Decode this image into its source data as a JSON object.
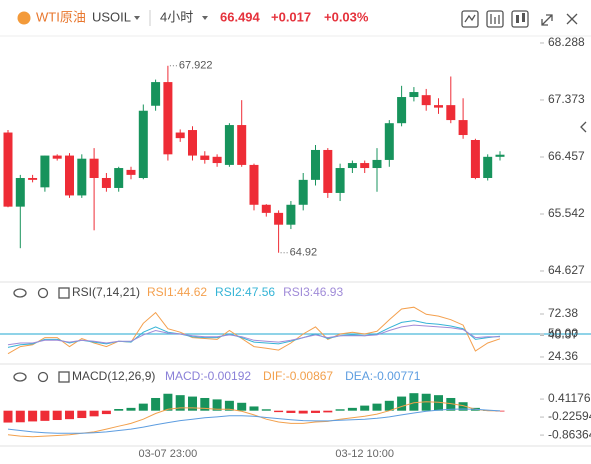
{
  "header": {
    "symbol_name": "WTI原油",
    "symbol": "USOIL",
    "interval": "4小时",
    "price": "66.494",
    "change": "+0.017",
    "change_pct": "+0.03%"
  },
  "chart_data": [
    {
      "type": "candlestick",
      "categories": [
        null,
        null,
        null,
        null,
        null,
        null,
        null,
        null,
        null,
        null,
        null,
        null,
        null,
        "03-07 23:00",
        null,
        null,
        null,
        null,
        null,
        null,
        null,
        null,
        null,
        null,
        null,
        null,
        null,
        null,
        null,
        "03-12 10:00",
        null,
        null,
        null,
        null,
        null,
        null,
        null,
        null,
        null,
        null,
        null
      ],
      "open": [
        66.85,
        65.66,
        66.12,
        65.97,
        66.48,
        66.48,
        65.84,
        66.43,
        66.12,
        65.96,
        66.25,
        66.12,
        67.28,
        67.66,
        66.85,
        66.89,
        66.48,
        66.46,
        66.33,
        66.97,
        66.33,
        65.69,
        65.56,
        65.37,
        65.69,
        66.09,
        66.57,
        65.88,
        66.28,
        66.36,
        66.28,
        66.41,
        67.0,
        67.42,
        67.45,
        67.29,
        67.29,
        67.05,
        66.73,
        66.12,
        66.46
      ],
      "high": [
        66.89,
        66.17,
        66.17,
        66.48,
        66.5,
        66.52,
        66.5,
        66.6,
        66.2,
        66.3,
        66.3,
        67.3,
        67.7,
        67.922,
        66.9,
        66.95,
        66.55,
        66.5,
        67.0,
        67.37,
        66.35,
        65.7,
        65.6,
        65.75,
        66.2,
        66.65,
        66.6,
        66.35,
        66.4,
        66.4,
        66.6,
        67.05,
        67.6,
        67.58,
        67.55,
        67.4,
        67.75,
        67.4,
        66.75,
        66.5,
        66.55
      ],
      "low": [
        65.65,
        64.993,
        66.05,
        65.9,
        66.4,
        65.8,
        65.8,
        65.28,
        65.9,
        65.9,
        66.1,
        66.1,
        67.2,
        66.4,
        66.7,
        66.4,
        66.35,
        66.3,
        66.3,
        66.3,
        65.6,
        65.5,
        64.92,
        65.3,
        65.6,
        66.0,
        65.8,
        65.75,
        66.2,
        66.2,
        65.9,
        66.3,
        66.95,
        67.35,
        67.2,
        67.15,
        67.0,
        66.75,
        66.1,
        66.08,
        66.4
      ],
      "close": [
        65.66,
        66.12,
        66.09,
        66.48,
        66.43,
        65.84,
        66.43,
        66.12,
        65.96,
        66.28,
        66.17,
        67.2,
        67.66,
        66.5,
        66.76,
        66.48,
        66.41,
        66.36,
        66.97,
        66.33,
        65.69,
        65.56,
        65.37,
        65.69,
        66.09,
        66.57,
        65.88,
        66.28,
        66.36,
        66.28,
        66.41,
        67.0,
        67.42,
        67.5,
        67.29,
        67.25,
        67.05,
        66.81,
        66.12,
        66.46,
        66.494
      ],
      "up_color": "#17935c",
      "down_color": "#ee2c36",
      "ylim": [
        64.45,
        68.4
      ],
      "yticks": [
        64.627,
        65.542,
        66.457,
        67.373,
        68.288
      ]
    },
    {
      "type": "line",
      "title": "RSI(7,14,21)",
      "series": [
        {
          "name": "RSI1:44.62",
          "color": "#f4a04e",
          "values": [
            28,
            36,
            38,
            46,
            46,
            36,
            45,
            40,
            36,
            42,
            41,
            62,
            74,
            56,
            52,
            46,
            45,
            44,
            54,
            45,
            36,
            34,
            32,
            40,
            50,
            58,
            44,
            50,
            52,
            50,
            53,
            66,
            78,
            80,
            72,
            70,
            66,
            60,
            31,
            40,
            44.62
          ]
        },
        {
          "name": "RSI2:47.56",
          "color": "#35b4d6",
          "values": [
            35,
            38,
            39,
            44,
            44,
            40,
            43,
            41,
            39,
            42,
            41,
            52,
            58,
            52,
            50,
            47,
            46,
            46,
            50,
            46,
            41,
            40,
            39,
            42,
            46,
            50,
            45,
            48,
            49,
            48,
            50,
            57,
            63,
            65,
            62,
            61,
            59,
            56,
            44,
            46,
            47.56
          ]
        },
        {
          "name": "RSI3:46.93",
          "color": "#a08bd8",
          "values": [
            38,
            40,
            40,
            43,
            43,
            41,
            43,
            42,
            40,
            42,
            42,
            49,
            54,
            51,
            50,
            48,
            47,
            47,
            49,
            47,
            43,
            42,
            41,
            43,
            46,
            49,
            46,
            48,
            48,
            48,
            49,
            54,
            58,
            60,
            59,
            58,
            57,
            55,
            46,
            47,
            46.93
          ]
        }
      ],
      "ylim": [
        16.5,
        85.8
      ],
      "yticks": [
        24.36,
        48.37,
        {
          "value": 50,
          "label": "50.00",
          "line_color": "#4cb9d9"
        },
        72.38
      ]
    },
    {
      "type": "macd",
      "title": "MACD(12,26,9)",
      "series": [
        {
          "name": "MACD:-0.00192",
          "type": "bar",
          "color": "#8a80d8",
          "up_color": "#17935c",
          "down_color": "#ee2c36",
          "values": [
            -0.42,
            -0.41,
            -0.38,
            -0.36,
            -0.33,
            -0.3,
            -0.26,
            -0.2,
            -0.12,
            0.06,
            0.1,
            0.25,
            0.45,
            0.6,
            0.55,
            0.5,
            0.45,
            0.4,
            0.35,
            0.28,
            0.15,
            0.05,
            -0.05,
            -0.08,
            -0.1,
            -0.08,
            -0.06,
            0.05,
            0.1,
            0.18,
            0.25,
            0.35,
            0.5,
            0.62,
            0.6,
            0.55,
            0.45,
            0.3,
            0.1,
            0.02,
            -0.00192
          ]
        },
        {
          "name": "DIF:-0.00867",
          "type": "line",
          "color": "#f2a04c",
          "values": [
            -0.85,
            -0.9,
            -0.92,
            -0.9,
            -0.88,
            -0.85,
            -0.8,
            -0.75,
            -0.65,
            -0.55,
            -0.45,
            -0.3,
            -0.1,
            0.05,
            0.1,
            0.1,
            0.08,
            0.05,
            0.05,
            -0.02,
            -0.15,
            -0.3,
            -0.4,
            -0.45,
            -0.45,
            -0.4,
            -0.38,
            -0.3,
            -0.25,
            -0.2,
            -0.12,
            0.0,
            0.15,
            0.28,
            0.32,
            0.3,
            0.25,
            0.18,
            0.05,
            0.0,
            -0.00867
          ]
        },
        {
          "name": "DEA:-0.00771",
          "type": "line",
          "color": "#5d9de0",
          "values": [
            -0.65,
            -0.7,
            -0.75,
            -0.78,
            -0.8,
            -0.8,
            -0.8,
            -0.78,
            -0.75,
            -0.7,
            -0.65,
            -0.58,
            -0.5,
            -0.42,
            -0.35,
            -0.3,
            -0.25,
            -0.22,
            -0.18,
            -0.18,
            -0.2,
            -0.24,
            -0.28,
            -0.32,
            -0.35,
            -0.36,
            -0.36,
            -0.34,
            -0.32,
            -0.3,
            -0.27,
            -0.22,
            -0.15,
            -0.08,
            -0.02,
            0.02,
            0.05,
            0.06,
            0.05,
            0.02,
            -0.00771
          ]
        }
      ],
      "ylim": [
        -1.25,
        1.37
      ],
      "yticks": [
        -0.86364,
        -0.22594,
        0.41176
      ]
    }
  ]
}
